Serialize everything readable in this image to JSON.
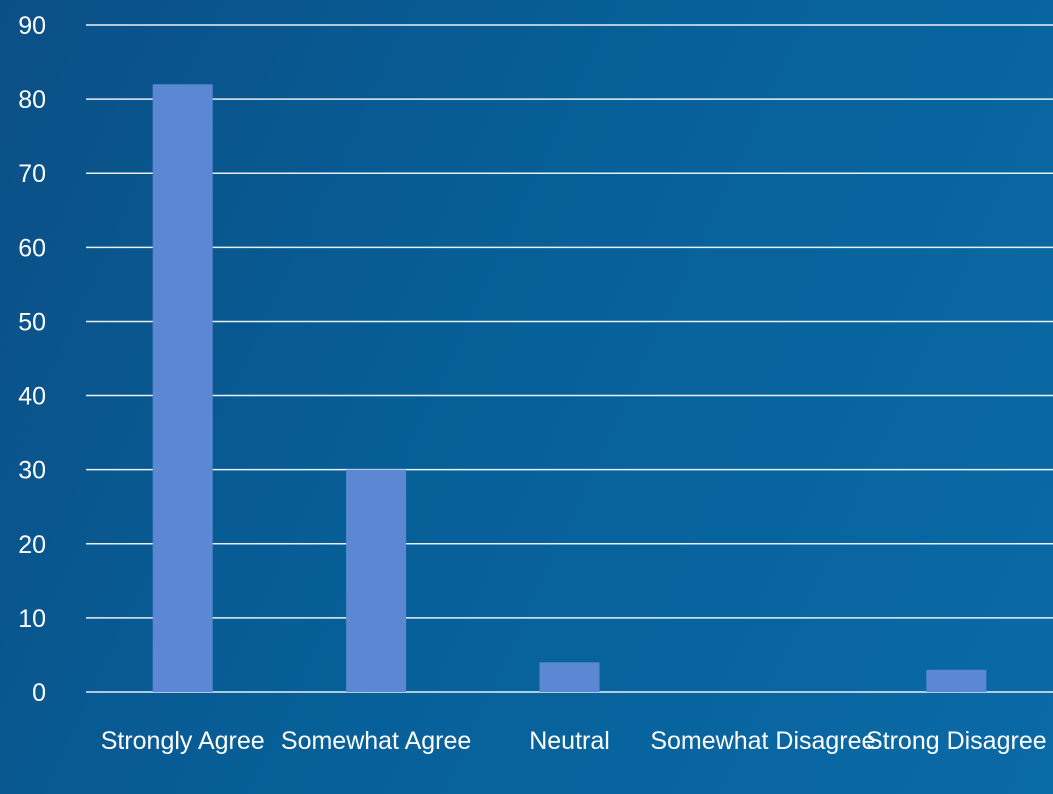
{
  "chart_data": {
    "type": "bar",
    "title": "",
    "xlabel": "",
    "ylabel": "",
    "categories": [
      "Strongly Agree",
      "Somewhat Agree",
      "Neutral",
      "Somewhat Disagree",
      "Strong Disagree"
    ],
    "values": [
      82,
      30,
      4,
      0,
      3
    ],
    "ylim": [
      0,
      90
    ],
    "yticks": [
      0,
      10,
      20,
      30,
      40,
      50,
      60,
      70,
      80,
      90
    ],
    "grid": true,
    "legend": "none",
    "colors": {
      "bar": "#5b87d3",
      "grid": "#ffffff",
      "text": "#ffffff"
    }
  }
}
